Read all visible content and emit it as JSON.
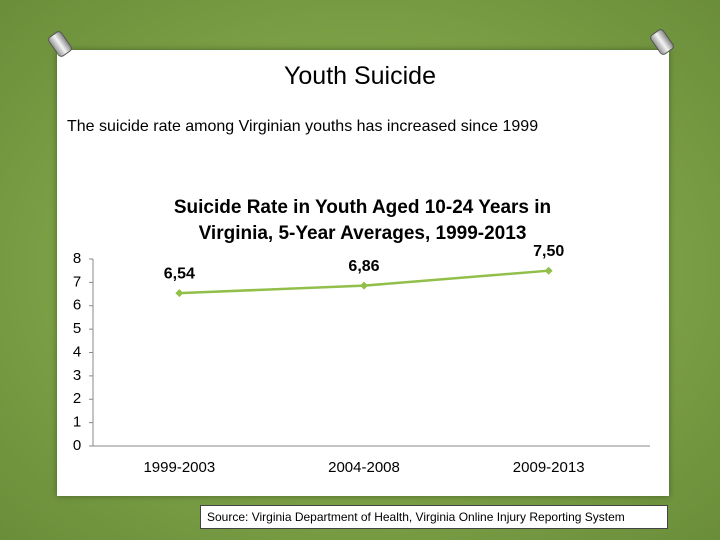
{
  "title": "Youth Suicide",
  "subtitle": "The suicide rate among Virginian youths has increased since 1999",
  "source": "Source: Virginia Department of Health, Virginia Online Injury Reporting System",
  "chart_data": {
    "type": "line",
    "title": "Suicide Rate in Youth Aged 10-24 Years in Virginia, 5-Year Averages, 1999-2013",
    "categories": [
      "1999-2003",
      "2004-2008",
      "2009-2013"
    ],
    "values": [
      6.54,
      6.86,
      7.5
    ],
    "value_labels": [
      "6,54",
      "6,86",
      "7,50"
    ],
    "color": "#92bf4a",
    "ylim": [
      0,
      8
    ],
    "yticks": [
      0,
      1,
      2,
      3,
      4,
      5,
      6,
      7,
      8
    ],
    "grid": false
  }
}
